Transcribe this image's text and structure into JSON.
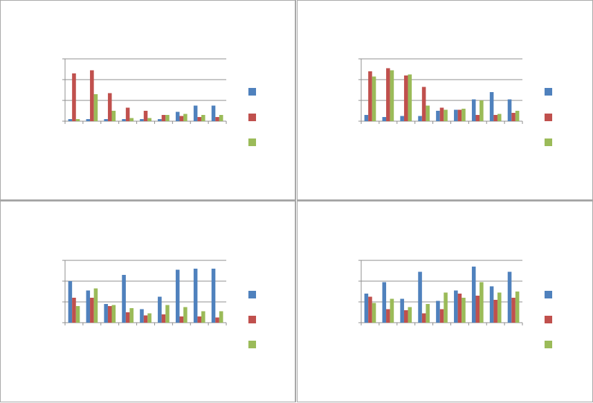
{
  "chart_data": [
    {
      "type": "bar",
      "title": "",
      "categories": [
        "",
        "",
        "",
        "",
        "",
        "",
        "",
        "",
        ""
      ],
      "series": [
        {
          "color": "#4f81bd",
          "values": [
            0.1,
            0.1,
            0.1,
            0.1,
            0.1,
            0.1,
            0.45,
            0.75,
            0.75
          ]
        },
        {
          "color": "#c0504d",
          "values": [
            2.3,
            2.45,
            1.35,
            0.65,
            0.5,
            0.3,
            0.25,
            0.2,
            0.2
          ]
        },
        {
          "color": "#9bbb59",
          "values": [
            0.1,
            1.3,
            0.5,
            0.15,
            0.15,
            0.3,
            0.35,
            0.3,
            0.3
          ]
        }
      ],
      "ylim": [
        0,
        3
      ],
      "y_gridlines": [
        0,
        1,
        2,
        3
      ],
      "legend": "right",
      "grid": true
    },
    {
      "type": "bar",
      "title": "",
      "categories": [
        "",
        "",
        "",
        "",
        "",
        "",
        "",
        "",
        ""
      ],
      "series": [
        {
          "color": "#4f81bd",
          "values": [
            0.3,
            0.2,
            0.25,
            0.25,
            0.5,
            0.55,
            1.05,
            1.4,
            1.05
          ]
        },
        {
          "color": "#c0504d",
          "values": [
            2.4,
            2.55,
            2.2,
            1.65,
            0.65,
            0.55,
            0.3,
            0.3,
            0.4
          ]
        },
        {
          "color": "#9bbb59",
          "values": [
            2.15,
            2.45,
            2.25,
            0.75,
            0.55,
            0.6,
            1.0,
            0.35,
            0.5
          ]
        }
      ],
      "ylim": [
        0,
        3
      ],
      "y_gridlines": [
        0,
        1,
        2,
        3
      ],
      "legend": "right",
      "grid": true
    },
    {
      "type": "bar",
      "title": "",
      "categories": [
        "",
        "",
        "",
        "",
        "",
        "",
        "",
        "",
        ""
      ],
      "series": [
        {
          "color": "#4f81bd",
          "values": [
            2.0,
            1.55,
            0.9,
            2.3,
            0.65,
            1.25,
            2.55,
            2.6,
            2.6
          ]
        },
        {
          "color": "#c0504d",
          "values": [
            1.2,
            1.2,
            0.8,
            0.5,
            0.35,
            0.4,
            0.3,
            0.3,
            0.25
          ]
        },
        {
          "color": "#9bbb59",
          "values": [
            0.8,
            1.65,
            0.85,
            0.7,
            0.45,
            0.85,
            0.75,
            0.55,
            0.55
          ]
        }
      ],
      "ylim": [
        0,
        3
      ],
      "y_gridlines": [
        0,
        1,
        2,
        3
      ],
      "legend": "right",
      "grid": true
    },
    {
      "type": "bar",
      "title": "",
      "categories": [
        "",
        "",
        "",
        "",
        "",
        "",
        "",
        "",
        ""
      ],
      "series": [
        {
          "color": "#4f81bd",
          "values": [
            1.4,
            1.95,
            1.15,
            2.45,
            1.05,
            1.55,
            2.7,
            1.75,
            2.45
          ]
        },
        {
          "color": "#c0504d",
          "values": [
            1.25,
            0.65,
            0.6,
            0.45,
            0.65,
            1.4,
            1.3,
            1.1,
            1.2
          ]
        },
        {
          "color": "#9bbb59",
          "values": [
            0.95,
            1.15,
            0.75,
            0.9,
            1.45,
            1.2,
            1.95,
            1.45,
            1.5
          ]
        }
      ],
      "ylim": [
        0,
        3
      ],
      "y_gridlines": [
        0,
        1,
        2,
        3
      ],
      "legend": "right",
      "grid": true
    }
  ]
}
